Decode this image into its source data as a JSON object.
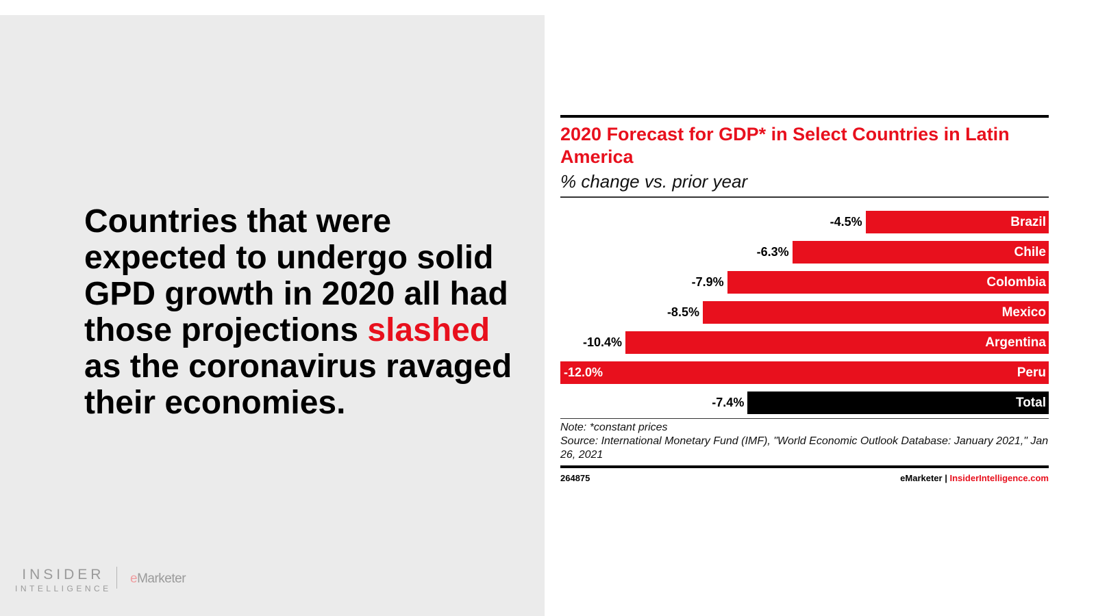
{
  "left_panel": {
    "headline_before": "Countries that were expected to undergo solid GPD growth in 2020 all had those projections ",
    "headline_highlight": "slashed",
    "headline_after": " as the coronavirus ravaged their economies.",
    "logo_insider": "INSIDER",
    "logo_intelligence": "INTELLIGENCE",
    "logo_emarketer_e": "e",
    "logo_emarketer_rest": "Marketer"
  },
  "chart_data": {
    "type": "bar",
    "orientation": "horizontal",
    "title": "2020 Forecast for GDP* in Select Countries in Latin America",
    "subtitle": "% change vs. prior year",
    "categories": [
      "Brazil",
      "Chile",
      "Colombia",
      "Mexico",
      "Argentina",
      "Peru",
      "Total"
    ],
    "values": [
      -4.5,
      -6.3,
      -7.9,
      -8.5,
      -10.4,
      -12.0,
      -7.4
    ],
    "data_labels": [
      "-4.5%",
      "-6.3%",
      "-7.9%",
      "-8.5%",
      "-10.4%",
      "-12.0%",
      "-7.4%"
    ],
    "xlim": [
      -12.0,
      0
    ],
    "grid": false,
    "colors": {
      "country": "#e8101d",
      "total": "#000000"
    },
    "note": "Note: *constant prices",
    "source": "Source: International Monetary Fund (IMF), \"World Economic Outlook Database: January 2021,\" Jan 26, 2021",
    "chart_id": "264875",
    "footer_brand": "eMarketer",
    "footer_separator": "|",
    "footer_site": "InsiderIntelligence.com"
  }
}
